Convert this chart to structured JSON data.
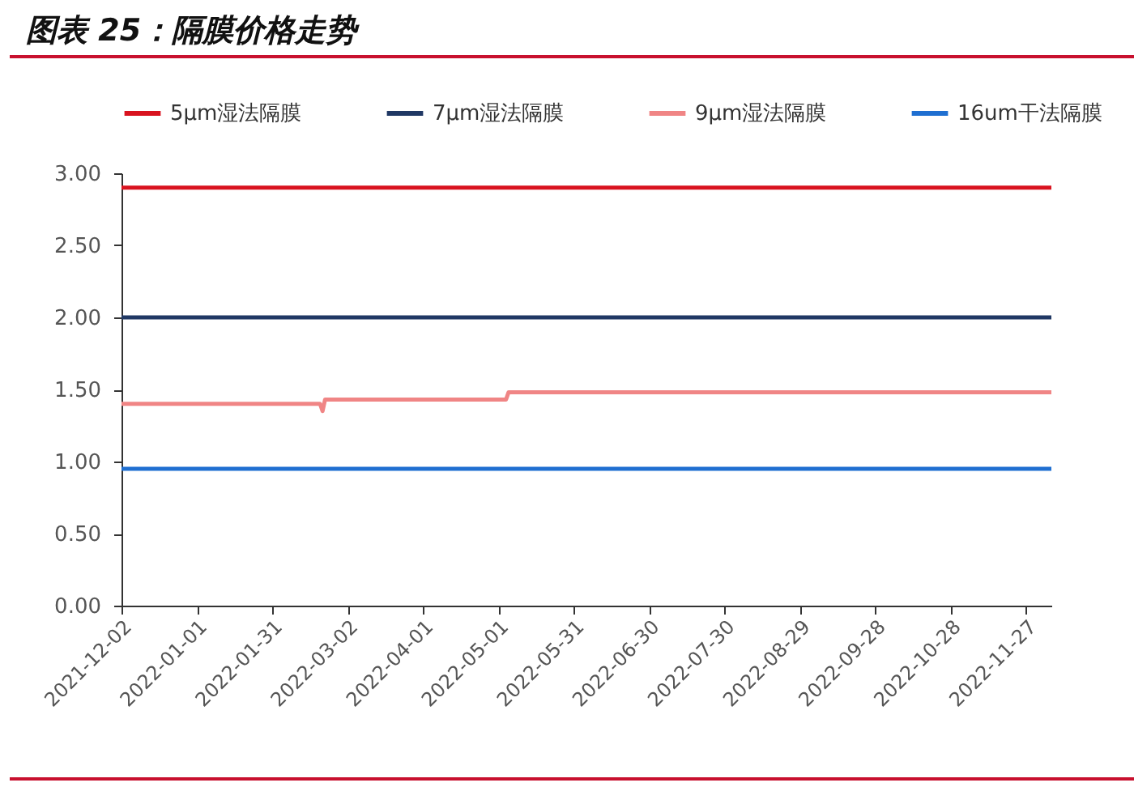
{
  "chart_data": {
    "type": "line",
    "title": "图表 25：隔膜价格走势",
    "legend": "top",
    "grid": false,
    "marker": "none",
    "line_style": "solid",
    "xlim": [
      "2021-12-02",
      "2022-12-07"
    ],
    "xticks": [
      "2021-12-02",
      "2022-01-01",
      "2022-01-31",
      "2022-03-02",
      "2022-04-01",
      "2022-05-01",
      "2022-05-31",
      "2022-06-30",
      "2022-07-30",
      "2022-08-29",
      "2022-09-28",
      "2022-10-28",
      "2022-11-27"
    ],
    "ylim": [
      0,
      3
    ],
    "yticks": [
      {
        "value": 0,
        "label": "0.00"
      },
      {
        "value": 0.5,
        "label": "0.50"
      },
      {
        "value": 1,
        "label": "1.00"
      },
      {
        "value": 1.5,
        "label": "1.50"
      },
      {
        "value": 2,
        "label": "2.00"
      },
      {
        "value": 2.5,
        "label": "2.50"
      },
      {
        "value": 3,
        "label": "3.00"
      }
    ],
    "series": [
      {
        "name": "5μm湿法隔膜",
        "color": "#d9131f",
        "x": [
          "2021-12-02",
          "2022-12-07"
        ],
        "values": [
          2.9,
          2.9
        ]
      },
      {
        "name": "7μm湿法隔膜",
        "color": "#203864",
        "x": [
          "2021-12-02",
          "2022-12-07"
        ],
        "values": [
          2.0,
          2.0
        ]
      },
      {
        "name": "9μm湿法隔膜",
        "color": "#f08585",
        "x": [
          "2021-12-02",
          "2022-02-19",
          "2022-02-20",
          "2022-02-21",
          "2022-05-04",
          "2022-05-05",
          "2022-12-07"
        ],
        "values": [
          1.4,
          1.4,
          1.35,
          1.43,
          1.43,
          1.48,
          1.48
        ]
      },
      {
        "name": "16um干法隔膜",
        "color": "#1f6fd1",
        "x": [
          "2021-12-02",
          "2022-12-07"
        ],
        "values": [
          0.95,
          0.95
        ]
      }
    ]
  }
}
